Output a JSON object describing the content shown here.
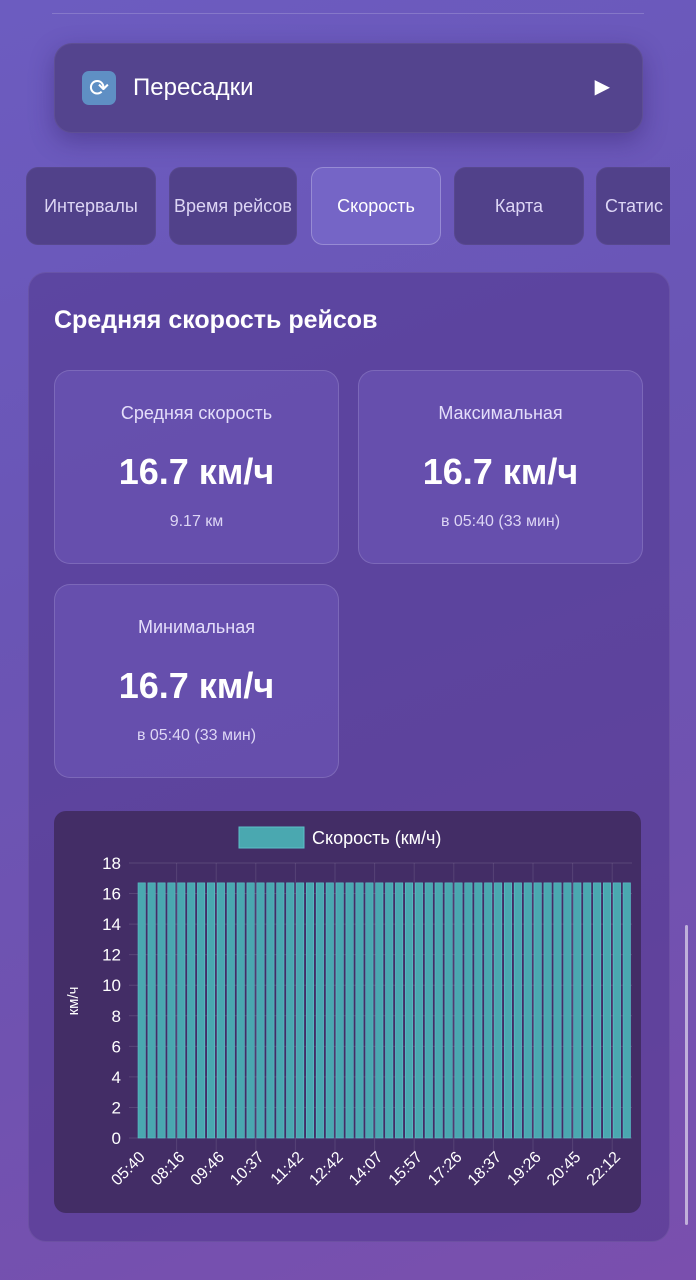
{
  "transfers": {
    "icon": "arrows-rotate-icon",
    "label": "Пересадки",
    "arrow": "▶"
  },
  "tabs": [
    {
      "label": "Интервалы",
      "active": false
    },
    {
      "label": "Время рейсов",
      "active": false
    },
    {
      "label": "Скорость",
      "active": true
    },
    {
      "label": "Карта",
      "active": false
    },
    {
      "label": "Статис",
      "active": false
    }
  ],
  "section": {
    "title": "Средняя скорость рейсов"
  },
  "cards": [
    {
      "label": "Средняя скорость",
      "value": "16.7 км/ч",
      "sub": "9.17 км"
    },
    {
      "label": "Максимальная",
      "value": "16.7 км/ч",
      "sub": "в 05:40 (33 мин)"
    },
    {
      "label": "Минимальная",
      "value": "16.7 км/ч",
      "sub": "в 05:40 (33 мин)"
    }
  ],
  "chart_data": {
    "type": "bar",
    "legend": "Скорость (км/ч)",
    "legend_placement": "top",
    "ylabel": "км/ч",
    "ylim": [
      0,
      18
    ],
    "yticks": [
      0,
      2,
      4,
      6,
      8,
      10,
      12,
      14,
      16,
      18
    ],
    "grid": true,
    "color": "#4aa8b0",
    "x_tick_labels": [
      "05:40",
      "08:16",
      "09:46",
      "10:37",
      "11:42",
      "12:42",
      "14:07",
      "15:57",
      "17:26",
      "18:37",
      "19:26",
      "20:45",
      "22:12"
    ],
    "x_tick_every": 4,
    "values": [
      16.7,
      16.7,
      16.7,
      16.7,
      16.7,
      16.7,
      16.7,
      16.7,
      16.7,
      16.7,
      16.7,
      16.7,
      16.7,
      16.7,
      16.7,
      16.7,
      16.7,
      16.7,
      16.7,
      16.7,
      16.7,
      16.7,
      16.7,
      16.7,
      16.7,
      16.7,
      16.7,
      16.7,
      16.7,
      16.7,
      16.7,
      16.7,
      16.7,
      16.7,
      16.7,
      16.7,
      16.7,
      16.7,
      16.7,
      16.7,
      16.7,
      16.7,
      16.7,
      16.7,
      16.7,
      16.7,
      16.7,
      16.7,
      16.7,
      16.7
    ]
  }
}
